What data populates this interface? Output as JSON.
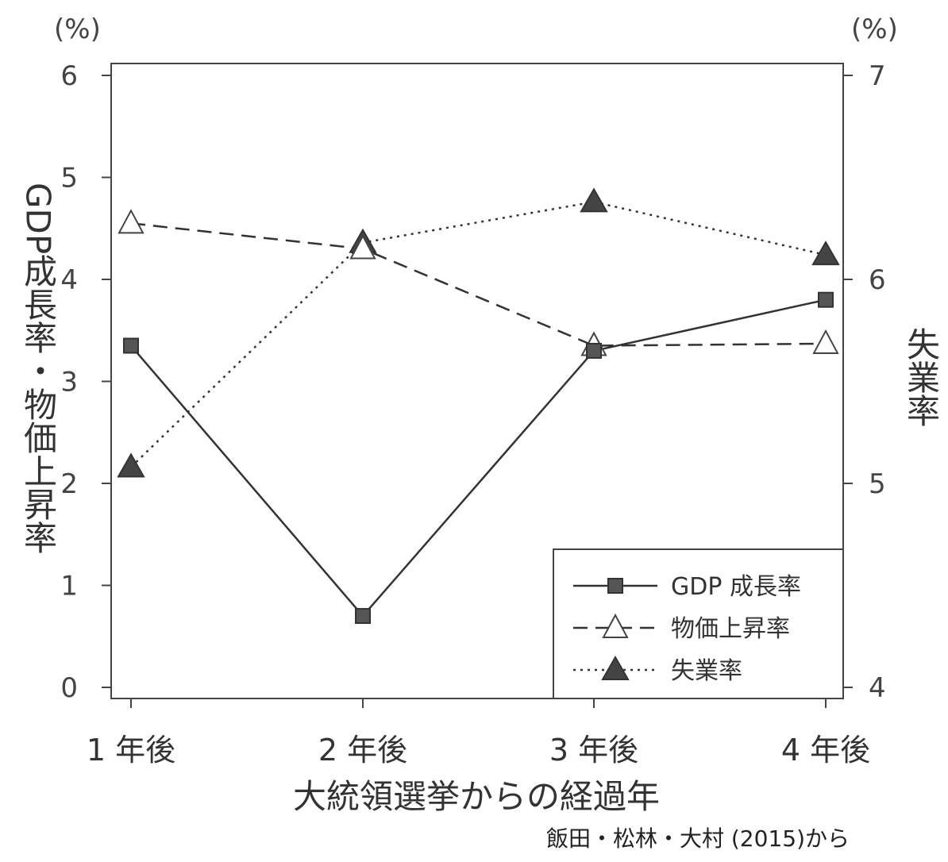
{
  "chart_data": {
    "type": "line",
    "categories": [
      "1 年後",
      "2 年後",
      "3 年後",
      "4 年後"
    ],
    "xlabel": "大統領選挙からの経過年",
    "ylabel_left": "GDP成長率・物価上昇率",
    "ylabel_right": "失業率",
    "unit_left": "(%)",
    "unit_right": "(%)",
    "ylim_left": [
      0,
      6
    ],
    "ylim_right": [
      4,
      7
    ],
    "yticks_left": [
      "0",
      "1",
      "2",
      "3",
      "4",
      "5",
      "6"
    ],
    "yticks_right": [
      "4",
      "5",
      "6",
      "7"
    ],
    "grid": false,
    "legend_position": "bottom-right",
    "series": [
      {
        "name": "GDP 成長率",
        "axis": "left",
        "line": "solid",
        "marker": "filled-square",
        "values": [
          3.35,
          0.7,
          3.3,
          3.8
        ]
      },
      {
        "name": "物価上昇率",
        "axis": "left",
        "line": "dashed",
        "marker": "open-triangle",
        "values": [
          4.55,
          4.3,
          3.35,
          3.37
        ]
      },
      {
        "name": "失業率",
        "axis": "right",
        "line": "dotted",
        "marker": "filled-triangle",
        "values": [
          5.08,
          6.18,
          6.38,
          6.12
        ]
      }
    ],
    "source": "飯田・松林・大村 (2015)から"
  }
}
